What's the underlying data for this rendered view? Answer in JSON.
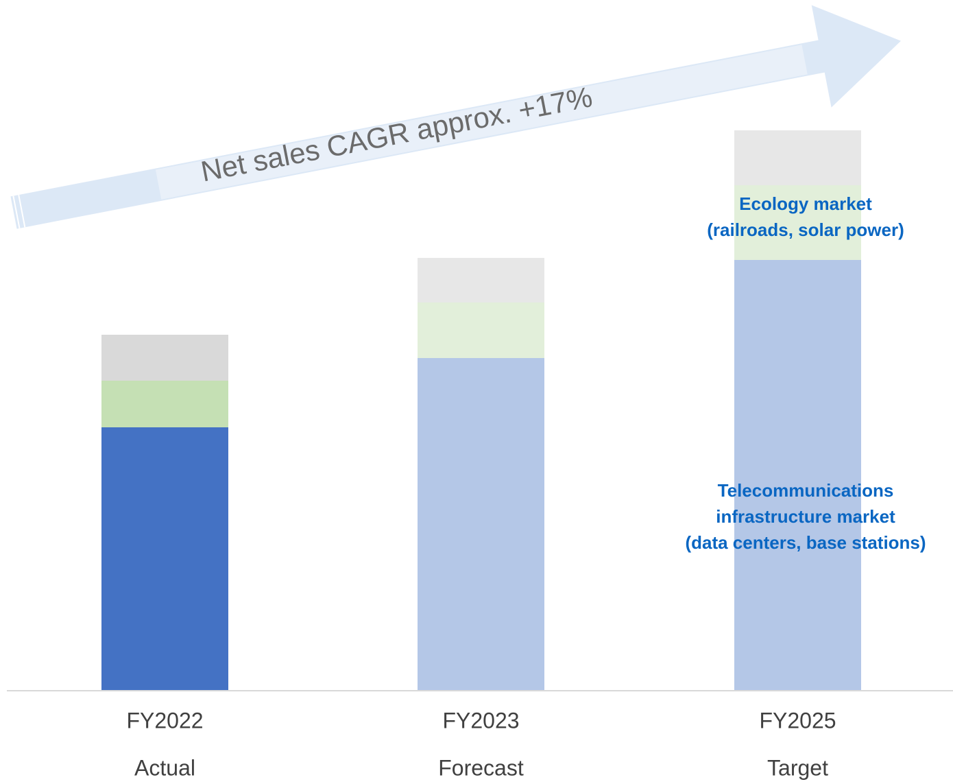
{
  "chart_data": {
    "type": "stacked-bar",
    "banner": "Net sales CAGR approx. +17%",
    "categories": [
      "FY2022",
      "FY2023",
      "FY2025"
    ],
    "sublabels": [
      "Actual",
      "Forecast",
      "Target"
    ],
    "ylim": [
      0,
      1000
    ],
    "series": [
      {
        "colors": [
          "#4472c4",
          "#b4c7e7",
          "#b4c7e7"
        ],
        "values": [
          384,
          485,
          628
        ]
      },
      {
        "colors": [
          "#c5e0b4",
          "#e2efda",
          "#e2efda"
        ],
        "values": [
          68,
          81,
          109
        ]
      },
      {
        "colors": [
          "#d9d9d9",
          "#e7e7e7",
          "#e7e7e7"
        ],
        "values": [
          67,
          65,
          80
        ]
      }
    ],
    "annotations": [
      {
        "lines": [
          "Ecology market",
          "(railroads, solar power)"
        ],
        "color": "#0a66c2"
      },
      {
        "lines": [
          "Telecommunications",
          "infrastructure market",
          "(data centers, base stations)"
        ],
        "color": "#0a66c2"
      }
    ]
  }
}
